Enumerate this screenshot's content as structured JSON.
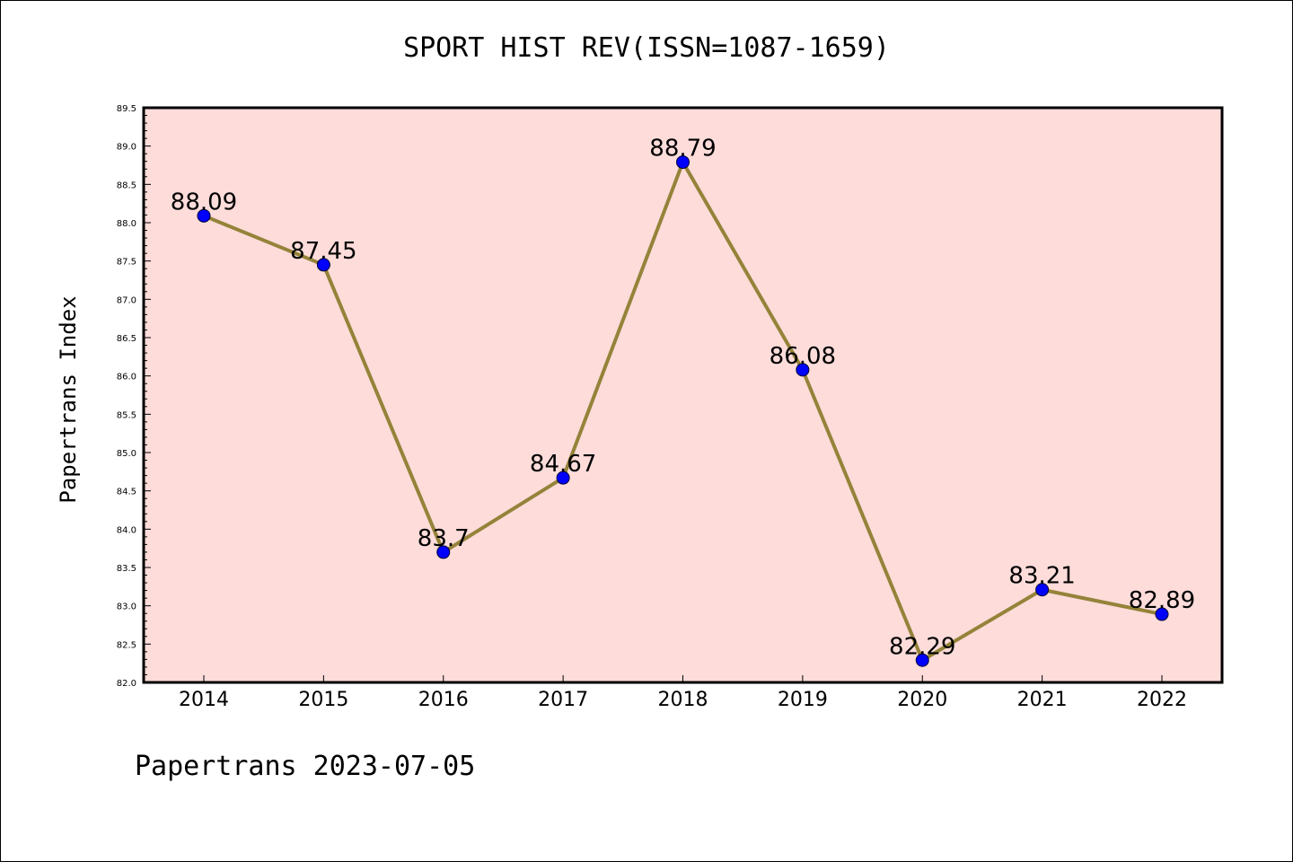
{
  "chart_data": {
    "type": "line",
    "title": "SPORT HIST REV(ISSN=1087-1659)",
    "ylabel": "Papertrans Index",
    "xlabel": "",
    "categories": [
      "2014",
      "2015",
      "2016",
      "2017",
      "2018",
      "2019",
      "2020",
      "2021",
      "2022"
    ],
    "values": [
      88.09,
      87.45,
      83.7,
      84.67,
      88.79,
      86.08,
      82.29,
      83.21,
      82.89
    ],
    "data_labels": [
      "88.09",
      "87.45",
      "83.7",
      "84.67",
      "88.79",
      "86.08",
      "82.29",
      "83.21",
      "82.89"
    ],
    "ylim": [
      82.0,
      89.5
    ],
    "yticks": [
      "82.0",
      "82.5",
      "83.0",
      "83.5",
      "84.0",
      "84.5",
      "85.0",
      "85.5",
      "86.0",
      "86.5",
      "87.0",
      "87.5",
      "88.0",
      "88.5",
      "89.0",
      "89.5"
    ],
    "grid": false,
    "colors": {
      "plot_background": "#fddcda",
      "line": "#948339",
      "marker": "#0000ff"
    }
  },
  "footer": "Papertrans 2023-07-05"
}
